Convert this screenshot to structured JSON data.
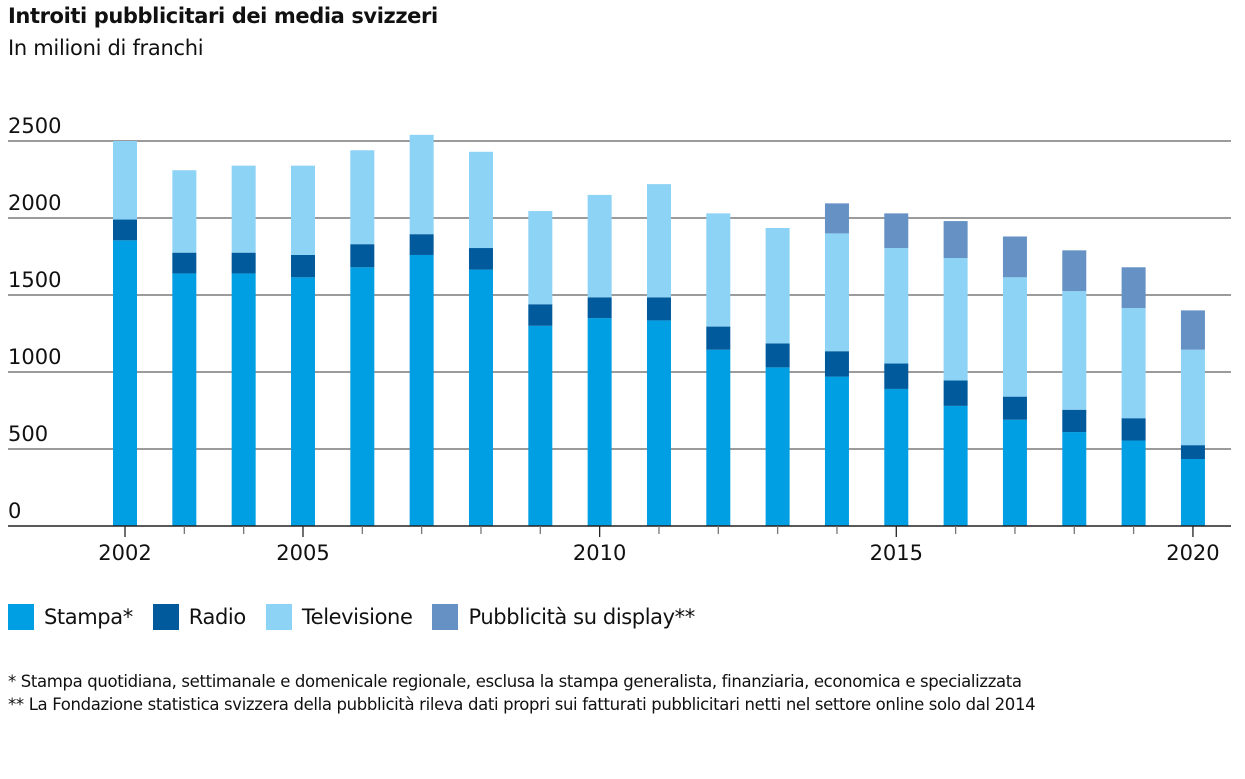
{
  "header": {
    "title": "Introiti pubblicitari dei media svizzeri",
    "subtitle": "In milioni di franchi"
  },
  "legend": [
    {
      "key": "stampa",
      "label": "Stampa*",
      "color": "#009FE3"
    },
    {
      "key": "radio",
      "label": "Radio",
      "color": "#005A9C"
    },
    {
      "key": "televisione",
      "label": "Televisione",
      "color": "#8CD3F5"
    },
    {
      "key": "display",
      "label": "Pubblicità su display**",
      "color": "#6591C4"
    }
  ],
  "notes": [
    "* Stampa quotidiana, settimanale e domenicale regionale, esclusa la stampa generalista, finanziaria, economica e specializzata",
    "** La Fondazione statistica svizzera della pubblicità rileva dati propri sui fatturati pubblicitari netti nel settore online solo dal 2014"
  ],
  "chart_data": {
    "type": "bar",
    "stacked": true,
    "title": "Introiti pubblicitari dei media svizzeri",
    "subtitle": "In milioni di franchi",
    "xlabel": "",
    "ylabel": "",
    "ylim": [
      0,
      2500
    ],
    "yticks": [
      0,
      500,
      1000,
      1500,
      2000,
      2500
    ],
    "grid": true,
    "legend_position": "bottom-left",
    "categories": [
      2002,
      2003,
      2004,
      2005,
      2006,
      2007,
      2008,
      2009,
      2010,
      2011,
      2012,
      2013,
      2014,
      2015,
      2016,
      2017,
      2018,
      2019,
      2020
    ],
    "xtick_labels": [
      {
        "year": 2002,
        "label": "2002"
      },
      {
        "year": 2005,
        "label": "2005"
      },
      {
        "year": 2010,
        "label": "2010"
      },
      {
        "year": 2015,
        "label": "2015"
      },
      {
        "year": 2020,
        "label": "2020"
      }
    ],
    "series": [
      {
        "name": "Stampa*",
        "color": "#009FE3",
        "values": [
          1855,
          1640,
          1640,
          1615,
          1680,
          1760,
          1665,
          1300,
          1350,
          1335,
          1145,
          1030,
          970,
          890,
          780,
          690,
          610,
          555,
          435
        ]
      },
      {
        "name": "Radio",
        "color": "#005A9C",
        "values": [
          135,
          135,
          135,
          145,
          150,
          135,
          140,
          140,
          135,
          150,
          150,
          155,
          165,
          165,
          165,
          150,
          145,
          145,
          90
        ]
      },
      {
        "name": "Televisione",
        "color": "#8CD3F5",
        "values": [
          510,
          535,
          565,
          580,
          610,
          645,
          625,
          605,
          665,
          735,
          735,
          750,
          765,
          750,
          795,
          775,
          770,
          715,
          620
        ]
      },
      {
        "name": "Pubblicità su display**",
        "color": "#6591C4",
        "values": [
          0,
          0,
          0,
          0,
          0,
          0,
          0,
          0,
          0,
          0,
          0,
          0,
          195,
          225,
          240,
          265,
          265,
          265,
          255
        ]
      }
    ]
  }
}
